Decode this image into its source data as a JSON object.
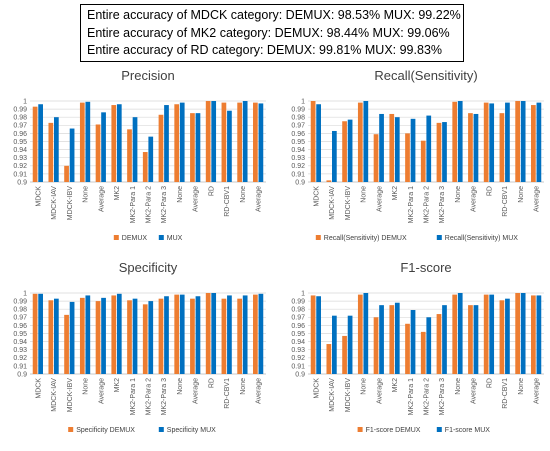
{
  "summary": {
    "lines": [
      "Entire accuracy of MDCK category: DEMUX: 98.53%  MUX: 99.22%",
      "Entire accuracy of MK2 category: DEMUX: 98.44%  MUX: 99.06%",
      "Entire accuracy of RD category: DEMUX: 99.81%  MUX: 99.83%"
    ]
  },
  "colors": {
    "demux": "#ED7D31",
    "mux": "#0070C0",
    "grid": "#d9d9d9",
    "axis": "#bfbfbf"
  },
  "chart_data": [
    {
      "type": "bar",
      "title": "Precision",
      "categories": [
        "MDCK",
        "MDCK-IAV",
        "MDCK-IBV",
        "None",
        "Average",
        "MK2",
        "MK2-Para 1",
        "MK2-Para 2",
        "MK2-Para 3",
        "None",
        "Average",
        "RD",
        "RD-CBV1",
        "None",
        "Average"
      ],
      "ylim": [
        0.9,
        1.0
      ],
      "yticks": [
        "0.9",
        "0.91",
        "0.92",
        "0.93",
        "0.94",
        "0.95",
        "0.96",
        "0.97",
        "0.98",
        "0.99",
        "1"
      ],
      "grid": true,
      "legend_position": "bottom",
      "series": [
        {
          "name": "DEMUX",
          "values": [
            0.993,
            0.973,
            0.92,
            0.998,
            0.971,
            0.995,
            0.965,
            0.937,
            0.983,
            0.996,
            0.985,
            1.0,
            0.998,
            0.998,
            0.998
          ]
        },
        {
          "name": "MUX",
          "values": [
            0.996,
            0.98,
            0.966,
            0.999,
            0.986,
            0.996,
            0.98,
            0.956,
            0.995,
            0.998,
            0.985,
            1.0,
            0.988,
            1.0,
            0.997
          ]
        }
      ]
    },
    {
      "type": "bar",
      "title": "Recall(Sensitivity)",
      "categories": [
        "MDCK",
        "MDCK-IAV",
        "MDCK-IBV",
        "None",
        "Average",
        "MK2",
        "MK2-Para 1",
        "MK2-Para 2",
        "MK2-Para 3",
        "None",
        "Average",
        "RD",
        "RD-CBV1",
        "None",
        "Average"
      ],
      "ylim": [
        0.9,
        1.0
      ],
      "yticks": [
        "0.9",
        "0.91",
        "0.92",
        "0.93",
        "0.94",
        "0.95",
        "0.96",
        "0.97",
        "0.98",
        "0.99",
        "1"
      ],
      "grid": true,
      "legend_position": "bottom",
      "series": [
        {
          "name": "Recall(Sensitivity) DEMUX",
          "values": [
            1.0,
            0.902,
            0.975,
            0.998,
            0.959,
            0.984,
            0.96,
            0.951,
            0.973,
            0.999,
            0.985,
            0.998,
            0.985,
            1.0,
            0.995
          ]
        },
        {
          "name": "Recall(Sensitivity) MUX",
          "values": [
            0.996,
            0.963,
            0.977,
            1.0,
            0.984,
            0.98,
            0.978,
            0.982,
            0.974,
            1.0,
            0.984,
            0.997,
            0.998,
            1.0,
            0.998
          ]
        }
      ]
    },
    {
      "type": "bar",
      "title": "Specificity",
      "categories": [
        "MDCK",
        "MDCK-IAV",
        "MDCK-IBV",
        "None",
        "Average",
        "MK2",
        "MK2-Para 1",
        "MK2-Para 2",
        "MK2-Para 3",
        "None",
        "Average",
        "RD",
        "RD-CBV1",
        "None",
        "Average"
      ],
      "ylim": [
        0.9,
        1.0
      ],
      "yticks": [
        "0.9",
        "0.91",
        "0.92",
        "0.93",
        "0.94",
        "0.95",
        "0.96",
        "0.97",
        "0.98",
        "0.99",
        "1"
      ],
      "grid": true,
      "legend_position": "bottom",
      "series": [
        {
          "name": "Specificity DEMUX",
          "values": [
            0.999,
            0.991,
            0.973,
            0.994,
            0.99,
            0.997,
            0.991,
            0.986,
            0.993,
            0.998,
            0.993,
            1.0,
            0.993,
            0.993,
            0.998
          ]
        },
        {
          "name": "Specificity MUX",
          "values": [
            0.999,
            0.993,
            0.989,
            0.997,
            0.994,
            0.999,
            0.993,
            0.99,
            0.996,
            0.998,
            0.996,
            1.0,
            0.997,
            0.997,
            0.999
          ]
        }
      ]
    },
    {
      "type": "bar",
      "title": "F1-score",
      "categories": [
        "MDCK",
        "MDCK-IAV",
        "MDCK-IBV",
        "None",
        "Average",
        "MK2",
        "MK2-Para 1",
        "MK2-Para 2",
        "MK2-Para 3",
        "None",
        "Average",
        "RD",
        "RD-CBV1",
        "None",
        "Average"
      ],
      "ylim": [
        0.9,
        1.0
      ],
      "yticks": [
        "0.9",
        "0.91",
        "0.92",
        "0.93",
        "0.94",
        "0.95",
        "0.96",
        "0.97",
        "0.98",
        "0.99",
        "1"
      ],
      "grid": true,
      "legend_position": "bottom",
      "series": [
        {
          "name": "F1-score DEMUX",
          "values": [
            0.997,
            0.937,
            0.947,
            0.998,
            0.97,
            0.985,
            0.962,
            0.952,
            0.974,
            0.998,
            0.985,
            0.998,
            0.991,
            1.0,
            0.997
          ]
        },
        {
          "name": "F1-score MUX",
          "values": [
            0.996,
            0.972,
            0.972,
            1.0,
            0.985,
            0.988,
            0.979,
            0.97,
            0.985,
            1.0,
            0.985,
            0.998,
            0.993,
            1.0,
            0.997
          ]
        }
      ]
    }
  ]
}
